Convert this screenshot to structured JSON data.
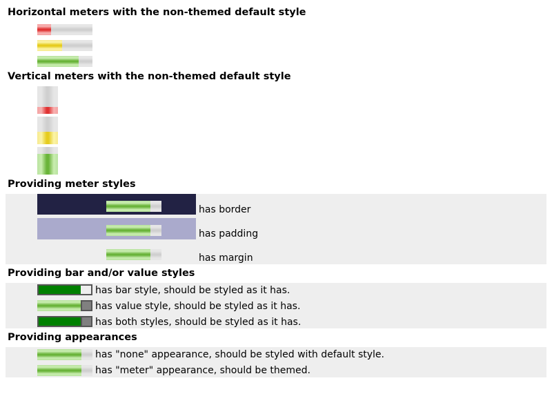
{
  "sections": {
    "horizontal": {
      "title": "Horizontal meters with the non-themed default style"
    },
    "vertical": {
      "title": "Vertical meters with the non-themed default style"
    },
    "styles": {
      "title": "Providing meter styles",
      "items": [
        {
          "label": "has border",
          "box_color": "#222244"
        },
        {
          "label": "has padding",
          "box_color": "#aaaacc"
        },
        {
          "label": "has margin"
        }
      ]
    },
    "bar_value": {
      "title": "Providing bar and/or value styles",
      "items": [
        {
          "label": "has bar style, should be styled as it has."
        },
        {
          "label": "has value style, should be styled as it has."
        },
        {
          "label": "has both styles, should be styled as it has."
        }
      ]
    },
    "appearances": {
      "title": "Providing appearances",
      "items": [
        {
          "label": "has \"none\" appearance, should be styled with default style."
        },
        {
          "label": "has \"meter\" appearance, should be themed."
        }
      ]
    }
  },
  "meters": {
    "horizontal": [
      {
        "value": 0.25,
        "color": "red"
      },
      {
        "value": 0.45,
        "color": "yellow"
      },
      {
        "value": 0.75,
        "color": "green"
      }
    ],
    "vertical": [
      {
        "value": 0.25,
        "color": "red"
      },
      {
        "value": 0.45,
        "color": "yellow"
      },
      {
        "value": 0.75,
        "color": "green"
      }
    ],
    "styles_value": 0.8,
    "bar_value_value": 0.8,
    "appearance_value": 0.8
  }
}
